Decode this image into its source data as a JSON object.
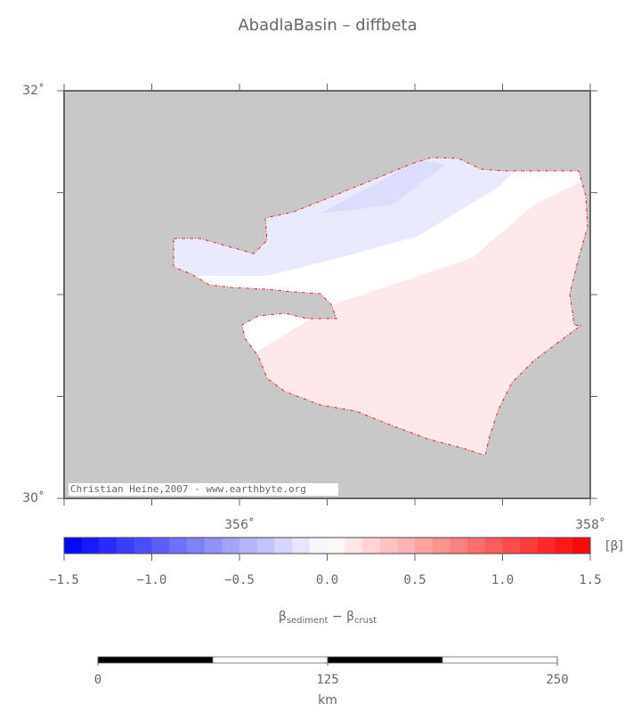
{
  "title": "AbadlaBasin – diffbeta",
  "map": {
    "lon_range": [
      355,
      358
    ],
    "lat_range": [
      30,
      32
    ],
    "lon_ticks": [
      {
        "value": 356,
        "label": "356˚"
      },
      {
        "value": 358,
        "label": "358˚"
      }
    ],
    "lat_ticks": [
      {
        "value": 32,
        "label": "32˚"
      },
      {
        "value": 30,
        "label": "30˚"
      }
    ],
    "credit": "Christian Heine,2007 - www.earthbyte.org"
  },
  "colorbar": {
    "ticks": [
      {
        "value": -1.5,
        "label": "−1.5"
      },
      {
        "value": -1.0,
        "label": "−1.0"
      },
      {
        "value": -0.5,
        "label": "−0.5"
      },
      {
        "value": 0,
        "label": "0.0"
      },
      {
        "value": 0.5,
        "label": "0.5"
      },
      {
        "value": 1.0,
        "label": "1.0"
      },
      {
        "value": 1.5,
        "label": "1.5"
      }
    ],
    "unit": "[β]",
    "label": {
      "symbol_a": "β",
      "sub_a": "sediment",
      "minus": " − β",
      "sub_b": "crust"
    }
  },
  "scalebar": {
    "ticks": [
      0,
      125,
      250
    ],
    "unit": "km"
  }
}
